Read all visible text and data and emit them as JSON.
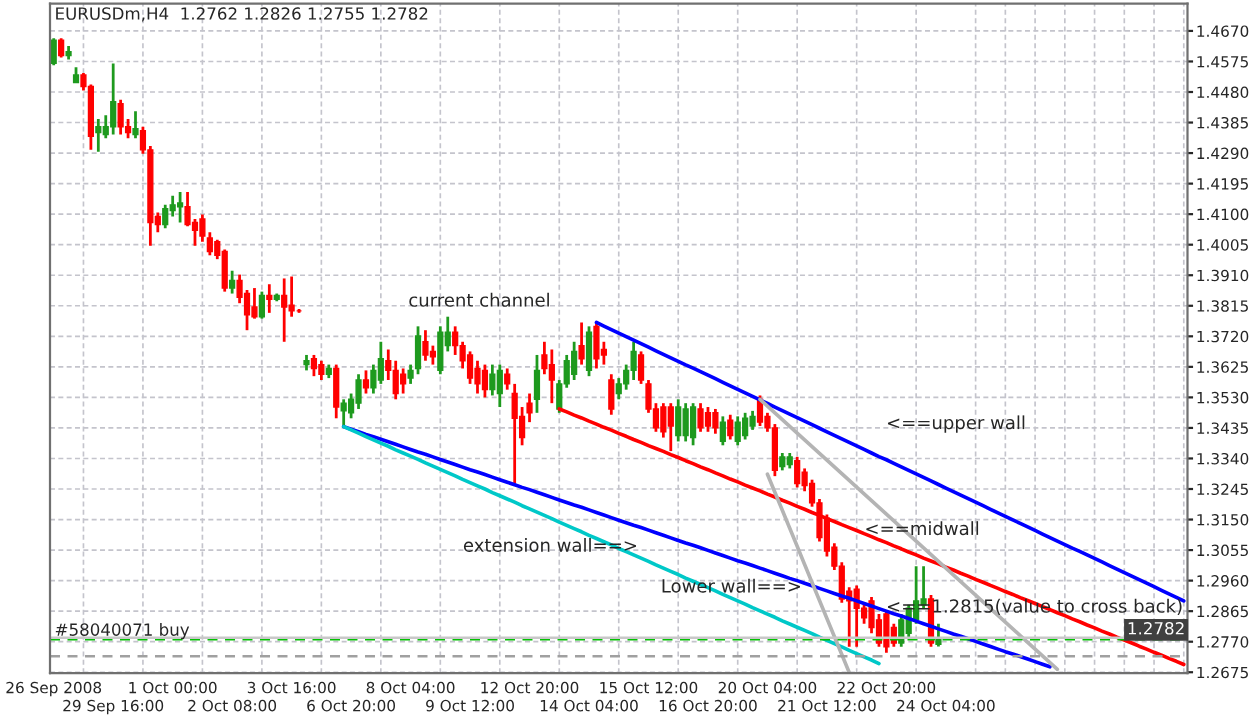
{
  "chart_data": {
    "type": "candlestick",
    "title": "EURUSDm,H4  1.2762 1.2826 1.2755 1.2782",
    "categories": [
      "26 Sep 2008",
      null,
      null,
      null,
      null,
      null,
      null,
      null,
      "29 Sep 16:00",
      null,
      null,
      null,
      null,
      null,
      null,
      null,
      "1 Oct 00:00",
      null,
      null,
      null,
      null,
      null,
      null,
      null,
      "2 Oct 08:00",
      null,
      null,
      null,
      null,
      null,
      null,
      null,
      "3 Oct 16:00",
      null,
      null,
      null,
      null,
      null,
      null,
      null,
      "6 Oct 20:00",
      null,
      null,
      null,
      null,
      null,
      null,
      null,
      "8 Oct 04:00",
      null,
      null,
      null,
      null,
      null,
      null,
      null,
      "9 Oct 12:00",
      null,
      null,
      null,
      null,
      null,
      null,
      null,
      "12 Oct 20:00",
      null,
      null,
      null,
      null,
      null,
      null,
      null,
      "14 Oct 04:00",
      null,
      null,
      null,
      null,
      null,
      null,
      null,
      "15 Oct 12:00",
      null,
      null,
      null,
      null,
      null,
      null,
      null,
      "16 Oct 20:00",
      null,
      null,
      null,
      null,
      null,
      null,
      null,
      "20 Oct 04:00",
      null,
      null,
      null,
      null,
      null,
      null,
      null,
      "21 Oct 12:00",
      null,
      null,
      null,
      null,
      null,
      null,
      null,
      "22 Oct 20:00",
      null,
      null,
      null,
      null,
      null,
      null,
      null,
      "24 Oct 04:00",
      null,
      null,
      null,
      null,
      null,
      null,
      null,
      null,
      null,
      null,
      null,
      null,
      null,
      null,
      null,
      null,
      null,
      null,
      null,
      null,
      null,
      null,
      null,
      null,
      null,
      null,
      null,
      null,
      null,
      null,
      null,
      null
    ],
    "ylim": [
      1.2672,
      1.4755
    ],
    "yticks": [
      {
        "value": 1.467,
        "label": "1.4670"
      },
      {
        "value": 1.4575,
        "label": "1.4575"
      },
      {
        "value": 1.448,
        "label": "1.4480"
      },
      {
        "value": 1.4385,
        "label": "1.4385"
      },
      {
        "value": 1.429,
        "label": "1.4290"
      },
      {
        "value": 1.4195,
        "label": "1.4195"
      },
      {
        "value": 1.41,
        "label": "1.4100"
      },
      {
        "value": 1.4005,
        "label": "1.4005"
      },
      {
        "value": 1.391,
        "label": "1.3910"
      },
      {
        "value": 1.3815,
        "label": "1.3815"
      },
      {
        "value": 1.372,
        "label": "1.3720"
      },
      {
        "value": 1.3625,
        "label": "1.3625"
      },
      {
        "value": 1.353,
        "label": "1.3530"
      },
      {
        "value": 1.3435,
        "label": "1.3435"
      },
      {
        "value": 1.334,
        "label": "1.3340"
      },
      {
        "value": 1.3245,
        "label": "1.3245"
      },
      {
        "value": 1.315,
        "label": "1.3150"
      },
      {
        "value": 1.3055,
        "label": "1.3055"
      },
      {
        "value": 1.296,
        "label": "1.2960"
      },
      {
        "value": 1.2865,
        "label": "1.2865"
      },
      {
        "value": 1.277,
        "label": "1.2770"
      },
      {
        "value": 1.2675,
        "label": "1.2675"
      }
    ],
    "grid": true,
    "ohlc": [
      [
        1.4569,
        1.4647,
        1.4563,
        1.4641
      ],
      [
        1.4641,
        1.4647,
        1.4587,
        1.4593
      ],
      [
        1.4593,
        1.4623,
        1.4581,
        1.4605
      ],
      [
        1.4509,
        1.4557,
        1.4509,
        1.4533
      ],
      [
        1.4533,
        1.4539,
        1.4485,
        1.4497
      ],
      [
        1.4497,
        1.4503,
        1.43,
        1.4342
      ],
      [
        1.4354,
        1.4396,
        1.4294,
        1.4372
      ],
      [
        1.4348,
        1.4408,
        1.4336,
        1.4372
      ],
      [
        1.4372,
        1.4569,
        1.4348,
        1.445
      ],
      [
        1.4444,
        1.4456,
        1.4348,
        1.4372
      ],
      [
        1.4372,
        1.4396,
        1.4336,
        1.4354
      ],
      [
        1.4348,
        1.442,
        1.4336,
        1.4366
      ],
      [
        1.436,
        1.4372,
        1.4288,
        1.43
      ],
      [
        1.43,
        1.4312,
        1.4002,
        1.4074
      ],
      [
        1.4093,
        1.4105,
        1.4044,
        1.4068
      ],
      [
        1.4068,
        1.4129,
        1.4056,
        1.4117
      ],
      [
        1.4111,
        1.4157,
        1.4093,
        1.4129
      ],
      [
        1.4123,
        1.4169,
        1.4074,
        1.4135
      ],
      [
        1.4123,
        1.4169,
        1.4062,
        1.4068
      ],
      [
        1.4074,
        1.4085,
        1.4002,
        1.405
      ],
      [
        1.4085,
        1.4099,
        1.4014,
        1.4032
      ],
      [
        1.4026,
        1.4044,
        1.3972,
        1.3984
      ],
      [
        1.4014,
        1.402,
        1.396,
        1.3972
      ],
      [
        1.3984,
        1.399,
        1.3859,
        1.387
      ],
      [
        1.387,
        1.3924,
        1.3853,
        1.3894
      ],
      [
        1.3894,
        1.3912,
        1.3823,
        1.3841
      ],
      [
        1.3853,
        1.3864,
        1.3739,
        1.3787
      ],
      [
        1.3811,
        1.387,
        1.3775,
        1.3781
      ],
      [
        1.3781,
        1.3859,
        1.3775,
        1.3847
      ],
      [
        1.3847,
        1.3882,
        1.3793,
        1.3835
      ],
      [
        1.3835,
        1.3853,
        1.3829,
        1.3847
      ],
      [
        1.3847,
        1.39,
        1.3703,
        1.3811
      ],
      [
        1.3817,
        1.3906,
        1.3781,
        1.3799
      ],
      [
        1.3799,
        1.3805,
        1.3793,
        1.3799
      ],
      [
        1.3632,
        1.3662,
        1.3614,
        1.3644
      ],
      [
        1.365,
        1.3662,
        1.3596,
        1.362
      ],
      [
        1.3632,
        1.3644,
        1.3584,
        1.3602
      ],
      [
        1.3602,
        1.3632,
        1.359,
        1.362
      ],
      [
        1.362,
        1.3632,
        1.3465,
        1.35
      ],
      [
        1.3488,
        1.3524,
        1.3435,
        1.3512
      ],
      [
        1.3482,
        1.3542,
        1.3465,
        1.3524
      ],
      [
        1.3512,
        1.3602,
        1.3494,
        1.3584
      ],
      [
        1.3584,
        1.3614,
        1.3542,
        1.356
      ],
      [
        1.356,
        1.3632,
        1.3542,
        1.3614
      ],
      [
        1.3584,
        1.3703,
        1.3572,
        1.365
      ],
      [
        1.3644,
        1.3679,
        1.3584,
        1.3614
      ],
      [
        1.3614,
        1.3644,
        1.3524,
        1.3542
      ],
      [
        1.3602,
        1.362,
        1.3542,
        1.3572
      ],
      [
        1.359,
        1.3632,
        1.3572,
        1.3614
      ],
      [
        1.362,
        1.3751,
        1.3602,
        1.3721
      ],
      [
        1.3703,
        1.3739,
        1.3644,
        1.3662
      ],
      [
        1.3673,
        1.3691,
        1.3632,
        1.3656
      ],
      [
        1.3614,
        1.3751,
        1.3602,
        1.3733
      ],
      [
        1.3691,
        1.3781,
        1.3673,
        1.3733
      ],
      [
        1.3733,
        1.3751,
        1.3662,
        1.3691
      ],
      [
        1.3691,
        1.3703,
        1.362,
        1.3644
      ],
      [
        1.3662,
        1.3673,
        1.3572,
        1.359
      ],
      [
        1.362,
        1.3644,
        1.3542,
        1.3572
      ],
      [
        1.3614,
        1.3632,
        1.353,
        1.3554
      ],
      [
        1.3554,
        1.3632,
        1.3536,
        1.3602
      ],
      [
        1.3542,
        1.3632,
        1.35,
        1.3614
      ],
      [
        1.3602,
        1.362,
        1.3554,
        1.3572
      ],
      [
        1.3542,
        1.3572,
        1.3262,
        1.3465
      ],
      [
        1.3471,
        1.35,
        1.3381,
        1.3405
      ],
      [
        1.3512,
        1.3542,
        1.3453,
        1.3482
      ],
      [
        1.3524,
        1.3662,
        1.3482,
        1.3614
      ],
      [
        1.3662,
        1.3703,
        1.3602,
        1.362
      ],
      [
        1.3632,
        1.3679,
        1.3512,
        1.3584
      ],
      [
        1.3494,
        1.3584,
        1.3482,
        1.3572
      ],
      [
        1.3572,
        1.3662,
        1.356,
        1.3644
      ],
      [
        1.3602,
        1.3703,
        1.3584,
        1.3673
      ],
      [
        1.3691,
        1.3763,
        1.3632,
        1.365
      ],
      [
        1.3614,
        1.3751,
        1.3596,
        1.3733
      ],
      [
        1.3751,
        1.3763,
        1.362,
        1.365
      ],
      [
        1.3679,
        1.3703,
        1.3632,
        1.3662
      ],
      [
        1.3584,
        1.3602,
        1.3476,
        1.3494
      ],
      [
        1.3542,
        1.359,
        1.3524,
        1.3572
      ],
      [
        1.3572,
        1.3632,
        1.3554,
        1.3614
      ],
      [
        1.3614,
        1.3703,
        1.3584,
        1.3673
      ],
      [
        1.3662,
        1.3673,
        1.3572,
        1.3584
      ],
      [
        1.3572,
        1.3584,
        1.3482,
        1.3494
      ],
      [
        1.3494,
        1.3512,
        1.3423,
        1.3435
      ],
      [
        1.35,
        1.3512,
        1.3405,
        1.3423
      ],
      [
        1.35,
        1.3512,
        1.3363,
        1.3441
      ],
      [
        1.3411,
        1.3524,
        1.3393,
        1.35
      ],
      [
        1.3411,
        1.3512,
        1.3393,
        1.3494
      ],
      [
        1.3405,
        1.3512,
        1.3381,
        1.35
      ],
      [
        1.3494,
        1.3512,
        1.3423,
        1.3435
      ],
      [
        1.3482,
        1.35,
        1.3423,
        1.3441
      ],
      [
        1.3482,
        1.3494,
        1.3417,
        1.3435
      ],
      [
        1.3393,
        1.3471,
        1.3381,
        1.3453
      ],
      [
        1.3459,
        1.3476,
        1.3399,
        1.3411
      ],
      [
        1.3393,
        1.3471,
        1.3381,
        1.3453
      ],
      [
        1.3411,
        1.3482,
        1.3399,
        1.3465
      ],
      [
        1.3441,
        1.3488,
        1.3429,
        1.3471
      ],
      [
        1.3524,
        1.3536,
        1.3441,
        1.3453
      ],
      [
        1.3471,
        1.3482,
        1.3423,
        1.3435
      ],
      [
        1.3435,
        1.3447,
        1.3285,
        1.3303
      ],
      [
        1.3315,
        1.3357,
        1.3303,
        1.3345
      ],
      [
        1.3321,
        1.3357,
        1.3309,
        1.3345
      ],
      [
        1.3333,
        1.3345,
        1.325,
        1.3262
      ],
      [
        1.3297,
        1.3309,
        1.3238,
        1.3256
      ],
      [
        1.3262,
        1.3274,
        1.319,
        1.3202
      ],
      [
        1.3202,
        1.3214,
        1.3082,
        1.3094
      ],
      [
        1.3154,
        1.3166,
        1.3035,
        1.3052
      ],
      [
        1.3064,
        1.3076,
        1.2993,
        1.3005
      ],
      [
        1.3005,
        1.3017,
        1.2891,
        1.2903
      ],
      [
        1.2927,
        1.2939,
        1.2754,
        1.2897
      ],
      [
        1.2933,
        1.2945,
        1.2754,
        1.2874
      ],
      [
        1.2874,
        1.2885,
        1.2826,
        1.2844
      ],
      [
        1.2897,
        1.2909,
        1.2796,
        1.2814
      ],
      [
        1.2838,
        1.2856,
        1.2754,
        1.2766
      ],
      [
        1.2856,
        1.2868,
        1.2736,
        1.2754
      ],
      [
        1.2814,
        1.2826,
        1.2754,
        1.2766
      ],
      [
        1.2766,
        1.2856,
        1.2754,
        1.2838
      ],
      [
        1.2796,
        1.2885,
        1.2784,
        1.2874
      ],
      [
        1.2838,
        1.3005,
        1.2826,
        1.2897
      ],
      [
        1.2885,
        1.3005,
        1.2874,
        1.2903
      ],
      [
        1.2903,
        1.2915,
        1.2754,
        1.2766
      ],
      [
        1.2762,
        1.2826,
        1.2755,
        1.2782
      ],
      null,
      null,
      null,
      null,
      null,
      null,
      null,
      null,
      null,
      null,
      null,
      null,
      null,
      null,
      null,
      null,
      null,
      null,
      null,
      null,
      null,
      null,
      null,
      null,
      null,
      null,
      null,
      null,
      null,
      null,
      null,
      null,
      null
    ],
    "colors": [
      "#1e9a1e",
      "#ff0000",
      "#1e9a1e",
      "#1e9a1e",
      "#ff0000",
      "#ff0000",
      "#1e9a1e",
      "#1e9a1e",
      "#1e9a1e",
      "#ff0000",
      "#ff0000",
      "#1e9a1e",
      "#ff0000",
      "#ff0000",
      "#ff0000",
      "#1e9a1e",
      "#1e9a1e",
      "#1e9a1e",
      "#ff0000",
      "#ff0000",
      "#ff0000",
      "#ff0000",
      "#ff0000",
      "#ff0000",
      "#1e9a1e",
      "#ff0000",
      "#ff0000",
      "#ff0000",
      "#1e9a1e",
      "#ff0000",
      "#1e9a1e",
      "#ff0000",
      "#ff0000",
      "#ff0000",
      "#1e9a1e",
      "#ff0000",
      "#ff0000",
      "#1e9a1e",
      "#ff0000",
      "#1e9a1e",
      "#1e9a1e",
      "#1e9a1e",
      "#ff0000",
      "#1e9a1e",
      "#1e9a1e",
      "#ff0000",
      "#ff0000",
      "#ff0000",
      "#1e9a1e",
      "#1e9a1e",
      "#ff0000",
      "#ff0000",
      "#1e9a1e",
      "#1e9a1e",
      "#ff0000",
      "#ff0000",
      "#ff0000",
      "#ff0000",
      "#ff0000",
      "#1e9a1e",
      "#1e9a1e",
      "#ff0000",
      "#ff0000",
      "#ff0000",
      "#ff0000",
      "#1e9a1e",
      "#ff0000",
      "#ff0000",
      "#1e9a1e",
      "#1e9a1e",
      "#1e9a1e",
      "#ff0000",
      "#1e9a1e",
      "#ff0000",
      "#ff0000",
      "#ff0000",
      "#1e9a1e",
      "#1e9a1e",
      "#1e9a1e",
      "#ff0000",
      "#ff0000",
      "#ff0000",
      "#ff0000",
      "#ff0000",
      "#1e9a1e",
      "#1e9a1e",
      "#1e9a1e",
      "#ff0000",
      "#ff0000",
      "#ff0000",
      "#1e9a1e",
      "#ff0000",
      "#1e9a1e",
      "#1e9a1e",
      "#1e9a1e",
      "#ff0000",
      "#ff0000",
      "#ff0000",
      "#1e9a1e",
      "#1e9a1e",
      "#ff0000",
      "#ff0000",
      "#ff0000",
      "#ff0000",
      "#ff0000",
      "#ff0000",
      "#ff0000",
      "#ff0000",
      "#ff0000",
      "#ff0000",
      "#ff0000",
      "#ff0000",
      "#ff0000",
      "#ff0000",
      "#1e9a1e",
      "#1e9a1e",
      "#1e9a1e",
      "#1e9a1e",
      "#ff0000",
      "#1e9a1e",
      null,
      null,
      null,
      null,
      null,
      null,
      null,
      null,
      null,
      null,
      null,
      null,
      null,
      null,
      null,
      null,
      null,
      null,
      null,
      null,
      null,
      null,
      null,
      null,
      null,
      null,
      null,
      null,
      null,
      null,
      null,
      null,
      null
    ],
    "series": [
      {
        "type": "line",
        "color": "#0000ff",
        "values": [
          null,
          null,
          null,
          null,
          null,
          null,
          null,
          null,
          null,
          null,
          null,
          null,
          null,
          null,
          null,
          null,
          null,
          null,
          null,
          null,
          null,
          null,
          null,
          null,
          null,
          null,
          null,
          null,
          null,
          null,
          null,
          null,
          null,
          null,
          null,
          null,
          null,
          null,
          null,
          null,
          null,
          null,
          null,
          null,
          null,
          null,
          null,
          null,
          null,
          null,
          null,
          null,
          null,
          null,
          null,
          null,
          null,
          null,
          null,
          null,
          null,
          null,
          null,
          null,
          null,
          null,
          null,
          null,
          null,
          null,
          null,
          null,
          null,
          1.3763,
          1.3752,
          1.3741,
          1.373,
          1.3719,
          1.3708,
          1.3697,
          1.3686,
          1.3675,
          1.3664,
          1.3653,
          1.3642,
          1.3631,
          1.3621,
          1.361,
          1.3599,
          1.3588,
          1.3577,
          1.3566,
          1.3555,
          1.3544,
          1.3533,
          1.3522,
          1.3511,
          1.35,
          1.3489,
          1.3478,
          1.3467,
          1.3456,
          1.3445,
          1.3434,
          1.3423,
          1.3412,
          1.3401,
          1.339,
          1.3379,
          1.3368,
          1.3357,
          1.3346,
          1.3336,
          1.3325,
          1.3314,
          1.3303,
          1.3292,
          1.3281,
          1.327,
          1.3259,
          1.3248,
          1.3237,
          1.3226,
          1.3215,
          1.3204,
          1.3193,
          1.3182,
          1.3171,
          1.316,
          1.3149,
          1.3138,
          1.3127,
          1.3116,
          1.3105,
          1.3094,
          1.3083,
          1.3072,
          1.3061,
          1.3051,
          1.304,
          1.3029,
          1.3018,
          1.3007,
          1.2996,
          1.2985,
          1.2974,
          1.2963,
          1.2952,
          1.2941,
          1.293,
          1.2919,
          1.2908,
          1.2897
        ]
      },
      {
        "type": "line",
        "color": "#ff0000",
        "values": [
          null,
          null,
          null,
          null,
          null,
          null,
          null,
          null,
          null,
          null,
          null,
          null,
          null,
          null,
          null,
          null,
          null,
          null,
          null,
          null,
          null,
          null,
          null,
          null,
          null,
          null,
          null,
          null,
          null,
          null,
          null,
          null,
          null,
          null,
          null,
          null,
          null,
          null,
          null,
          null,
          null,
          null,
          null,
          null,
          null,
          null,
          null,
          null,
          null,
          null,
          null,
          null,
          null,
          null,
          null,
          null,
          null,
          null,
          null,
          null,
          null,
          null,
          null,
          null,
          null,
          null,
          null,
          null,
          1.3494,
          1.3485,
          1.3475,
          1.3466,
          1.3456,
          1.3447,
          1.3437,
          1.3428,
          1.3418,
          1.3409,
          1.3399,
          1.339,
          1.338,
          1.3371,
          1.3362,
          1.3352,
          1.3343,
          1.3333,
          1.3324,
          1.3314,
          1.3305,
          1.3295,
          1.3286,
          1.3276,
          1.3267,
          1.3257,
          1.3248,
          1.3239,
          1.3229,
          1.322,
          1.321,
          1.3201,
          1.3191,
          1.3182,
          1.3172,
          1.3163,
          1.3153,
          1.3144,
          1.3134,
          1.3125,
          1.3116,
          1.3106,
          1.3097,
          1.3087,
          1.3078,
          1.3068,
          1.3059,
          1.3049,
          1.304,
          1.303,
          1.3021,
          1.3012,
          1.3002,
          1.2993,
          1.2983,
          1.2974,
          1.2964,
          1.2955,
          1.2945,
          1.2936,
          1.2926,
          1.2917,
          1.2907,
          1.2898,
          1.2889,
          1.2879,
          1.287,
          1.286,
          1.2851,
          1.2841,
          1.2832,
          1.2822,
          1.2813,
          1.2803,
          1.2794,
          1.2784,
          1.2775,
          1.2766,
          1.2756,
          1.2747,
          1.2737,
          1.2728,
          1.2718,
          1.2709,
          1.2699
        ]
      },
      {
        "type": "line",
        "color": "#0000ff",
        "values": [
          null,
          null,
          null,
          null,
          null,
          null,
          null,
          null,
          null,
          null,
          null,
          null,
          null,
          null,
          null,
          null,
          null,
          null,
          null,
          null,
          null,
          null,
          null,
          null,
          null,
          null,
          null,
          null,
          null,
          null,
          null,
          null,
          null,
          null,
          null,
          null,
          null,
          null,
          null,
          1.3439,
          1.3431,
          1.3423,
          1.3415,
          1.3408,
          1.34,
          1.3392,
          1.3384,
          1.3376,
          1.3368,
          1.336,
          1.3353,
          1.3345,
          1.3337,
          1.3329,
          1.3321,
          1.3313,
          1.3305,
          1.3298,
          1.329,
          1.3282,
          1.3274,
          1.3266,
          1.3258,
          1.325,
          1.3243,
          1.3235,
          1.3227,
          1.3219,
          1.3211,
          1.3203,
          1.3195,
          1.3188,
          1.318,
          1.3172,
          1.3164,
          1.3156,
          1.3148,
          1.314,
          1.3132,
          1.3125,
          1.3117,
          1.3109,
          1.3101,
          1.3093,
          1.3085,
          1.3077,
          1.307,
          1.3062,
          1.3054,
          1.3046,
          1.3038,
          1.303,
          1.3022,
          1.3015,
          1.3007,
          1.2999,
          1.2991,
          1.2983,
          1.2975,
          1.2967,
          1.296,
          1.2952,
          1.2944,
          1.2936,
          1.2928,
          1.292,
          1.2912,
          1.2905,
          1.2897,
          1.2889,
          1.2881,
          1.2873,
          1.2865,
          1.2857,
          1.285,
          1.2842,
          1.2834,
          1.2826,
          1.2818,
          1.281,
          1.2802,
          1.2794,
          1.2787,
          1.2779,
          1.2771,
          1.2763,
          1.2755,
          1.2747,
          1.2739,
          1.2732,
          1.2724,
          1.2716,
          1.2708,
          1.27,
          1.2692,
          null,
          null,
          null,
          null,
          null,
          null,
          null,
          null,
          null,
          null,
          null,
          null,
          null,
          null,
          null,
          null,
          null,
          null
        ]
      },
      {
        "type": "line",
        "color": "#00c8c8",
        "values": [
          null,
          null,
          null,
          null,
          null,
          null,
          null,
          null,
          null,
          null,
          null,
          null,
          null,
          null,
          null,
          null,
          null,
          null,
          null,
          null,
          null,
          null,
          null,
          null,
          null,
          null,
          null,
          null,
          null,
          null,
          null,
          null,
          null,
          null,
          null,
          null,
          null,
          null,
          null,
          1.3439,
          1.3429,
          1.3419,
          1.3408,
          1.3398,
          1.3388,
          1.3378,
          1.3367,
          1.3357,
          1.3347,
          1.3337,
          1.3326,
          1.3316,
          1.3306,
          1.3296,
          1.3286,
          1.3275,
          1.3265,
          1.3255,
          1.3245,
          1.3234,
          1.3224,
          1.3214,
          1.3204,
          1.3193,
          1.3183,
          1.3173,
          1.3163,
          1.3153,
          1.3142,
          1.3132,
          1.3122,
          1.3112,
          1.3101,
          1.3091,
          1.3081,
          1.3071,
          1.306,
          1.305,
          1.304,
          1.303,
          1.302,
          1.3009,
          1.2999,
          1.2989,
          1.2979,
          1.2968,
          1.2958,
          1.2948,
          1.2938,
          1.2928,
          1.2917,
          1.2907,
          1.2897,
          1.2887,
          1.2876,
          1.2866,
          1.2856,
          1.2846,
          1.2835,
          1.2825,
          1.2815,
          1.2805,
          1.2795,
          1.2784,
          1.2774,
          1.2764,
          1.2754,
          1.2743,
          1.2733,
          1.2723,
          1.2713,
          1.2702,
          null,
          null,
          null,
          null,
          null,
          null,
          null,
          null,
          null,
          null,
          null,
          null,
          null,
          null,
          null,
          null,
          null,
          null,
          null,
          null,
          null,
          null,
          null,
          null,
          null,
          null,
          null,
          null,
          null,
          null,
          null,
          null,
          null,
          null,
          null,
          null,
          null,
          null,
          null,
          null,
          null
        ]
      },
      {
        "type": "line",
        "color": "#b4b4b4",
        "values": [
          null,
          null,
          null,
          null,
          null,
          null,
          null,
          null,
          null,
          null,
          null,
          null,
          null,
          null,
          null,
          null,
          null,
          null,
          null,
          null,
          null,
          null,
          null,
          null,
          null,
          null,
          null,
          null,
          null,
          null,
          null,
          null,
          null,
          null,
          null,
          null,
          null,
          null,
          null,
          null,
          null,
          null,
          null,
          null,
          null,
          null,
          null,
          null,
          null,
          null,
          null,
          null,
          null,
          null,
          null,
          null,
          null,
          null,
          null,
          null,
          null,
          null,
          null,
          null,
          null,
          null,
          null,
          null,
          null,
          null,
          null,
          null,
          null,
          null,
          null,
          null,
          null,
          null,
          null,
          null,
          null,
          null,
          null,
          null,
          null,
          null,
          null,
          null,
          null,
          null,
          null,
          null,
          null,
          null,
          null,
          1.3524,
          1.3503,
          1.3482,
          1.3461,
          1.344,
          1.3419,
          1.3398,
          1.3377,
          1.3356,
          1.3335,
          1.3314,
          1.3293,
          1.3272,
          1.3251,
          1.323,
          1.3209,
          1.3188,
          1.3167,
          1.3146,
          1.3125,
          1.3104,
          1.3083,
          1.3062,
          1.3041,
          1.302,
          1.2999,
          1.2978,
          1.2957,
          1.2936,
          1.2915,
          1.2894,
          1.2873,
          1.2852,
          1.2831,
          1.281,
          1.2789,
          1.2768,
          1.2747,
          1.2726,
          1.2705,
          1.2684,
          null,
          null,
          null,
          null,
          null,
          null,
          null,
          null,
          null,
          null,
          null,
          null,
          null,
          null,
          null,
          null,
          null
        ]
      },
      {
        "type": "line",
        "color": "#b4b4b4",
        "values": [
          null,
          null,
          null,
          null,
          null,
          null,
          null,
          null,
          null,
          null,
          null,
          null,
          null,
          null,
          null,
          null,
          null,
          null,
          null,
          null,
          null,
          null,
          null,
          null,
          null,
          null,
          null,
          null,
          null,
          null,
          null,
          null,
          null,
          null,
          null,
          null,
          null,
          null,
          null,
          null,
          null,
          null,
          null,
          null,
          null,
          null,
          null,
          null,
          null,
          null,
          null,
          null,
          null,
          null,
          null,
          null,
          null,
          null,
          null,
          null,
          null,
          null,
          null,
          null,
          null,
          null,
          null,
          null,
          null,
          null,
          null,
          null,
          null,
          null,
          null,
          null,
          null,
          null,
          null,
          null,
          null,
          null,
          null,
          null,
          null,
          null,
          null,
          null,
          null,
          null,
          null,
          null,
          null,
          null,
          null,
          null,
          1.3291,
          1.3235,
          1.3179,
          1.3123,
          1.3067,
          1.301,
          1.2954,
          1.2898,
          1.2842,
          1.2786,
          1.273,
          1.2674,
          null,
          null,
          null,
          null,
          null,
          null,
          null,
          null,
          null,
          null,
          null,
          null,
          null,
          null,
          null,
          null,
          null,
          null,
          null,
          null,
          null,
          null,
          null,
          null,
          null,
          null,
          null,
          null,
          null,
          null,
          null,
          null,
          null,
          null,
          null,
          null,
          null,
          null,
          null,
          null,
          null,
          null,
          null,
          null,
          null
        ]
      }
    ],
    "ref_lines": [
      {
        "axis": "y",
        "value": 1.2778,
        "label": "#58040071 buy",
        "color": "#00c000",
        "line_style": "dashed"
      },
      {
        "axis": "y",
        "value": 1.2725,
        "color": "#a0a0a0",
        "line_style": "dashed"
      },
      {
        "axis": "y",
        "value": 1.2782,
        "label": "1.2782",
        "color": "#c8c8c8",
        "line_style": "solid"
      }
    ],
    "annotations": [
      "current channel",
      "<==upper wall",
      "<==midwall",
      "extension wall==>",
      "Lower wall==>",
      "<==1.2815(value to cross back)"
    ]
  }
}
